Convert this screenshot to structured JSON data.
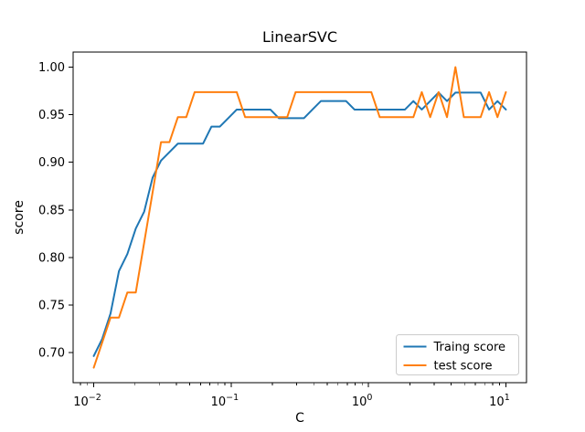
{
  "figure": {
    "title": "LinearSVC",
    "background": "#ffffff"
  },
  "chart_data": {
    "type": "line",
    "title": "LinearSVC",
    "xlabel": "C",
    "ylabel": "score",
    "x_scale": "log",
    "grid": false,
    "xlim_log10": [
      -2.15,
      1.15
    ],
    "ylim": [
      0.6684,
      1.0158
    ],
    "x": [
      0.01,
      0.011514,
      0.013257,
      0.015264,
      0.017575,
      0.020236,
      0.0233,
      0.026827,
      0.030888,
      0.035565,
      0.040949,
      0.047149,
      0.054287,
      0.062506,
      0.071969,
      0.082864,
      0.09541,
      0.109854,
      0.126486,
      0.145635,
      0.167683,
      0.19307,
      0.2223,
      0.255955,
      0.294705,
      0.339322,
      0.390694,
      0.449843,
      0.517947,
      0.596362,
      0.686649,
      0.790604,
      0.910298,
      1.048113,
      1.206793,
      1.389495,
      1.599859,
      1.84207,
      2.120951,
      2.442053,
      2.811769,
      3.237458,
      3.727594,
      4.291934,
      4.941713,
      5.689866,
      6.551286,
      7.54312,
      8.685114,
      10.0
    ],
    "series": [
      {
        "name": "Traing score",
        "color": "#1f77b4",
        "values": [
          0.6964,
          0.7143,
          0.7411,
          0.7857,
          0.8036,
          0.8304,
          0.8482,
          0.8839,
          0.9018,
          0.9107,
          0.9196,
          0.9196,
          0.9196,
          0.9196,
          0.9375,
          0.9375,
          0.9464,
          0.9554,
          0.9554,
          0.9554,
          0.9554,
          0.9554,
          0.9464,
          0.9464,
          0.9464,
          0.9464,
          0.9554,
          0.9643,
          0.9643,
          0.9643,
          0.9643,
          0.9554,
          0.9554,
          0.9554,
          0.9554,
          0.9554,
          0.9554,
          0.9554,
          0.9643,
          0.9554,
          0.9643,
          0.9732,
          0.9643,
          0.9732,
          0.9732,
          0.9732,
          0.9732,
          0.9554,
          0.9643,
          0.9554
        ]
      },
      {
        "name": "test score",
        "color": "#ff7f0e",
        "values": [
          0.6842,
          0.7105,
          0.7368,
          0.7368,
          0.7632,
          0.7632,
          0.8158,
          0.8684,
          0.9211,
          0.9211,
          0.9474,
          0.9474,
          0.9737,
          0.9737,
          0.9737,
          0.9737,
          0.9737,
          0.9737,
          0.9474,
          0.9474,
          0.9474,
          0.9474,
          0.9474,
          0.9474,
          0.9737,
          0.9737,
          0.9737,
          0.9737,
          0.9737,
          0.9737,
          0.9737,
          0.9737,
          0.9737,
          0.9737,
          0.9474,
          0.9474,
          0.9474,
          0.9474,
          0.9474,
          0.9737,
          0.9474,
          0.9737,
          0.9474,
          1.0,
          0.9474,
          0.9474,
          0.9474,
          0.9737,
          0.9474,
          0.9737
        ]
      }
    ],
    "yticks": [
      0.7,
      0.75,
      0.8,
      0.85,
      0.9,
      0.95,
      1.0
    ],
    "ytick_labels": [
      "0.70",
      "0.75",
      "0.80",
      "0.85",
      "0.90",
      "0.95",
      "1.00"
    ],
    "xtick_exponents": [
      -2,
      -1,
      0,
      1
    ],
    "legend": {
      "position": "lower right",
      "entries": [
        "Traing score",
        "test score"
      ]
    }
  }
}
